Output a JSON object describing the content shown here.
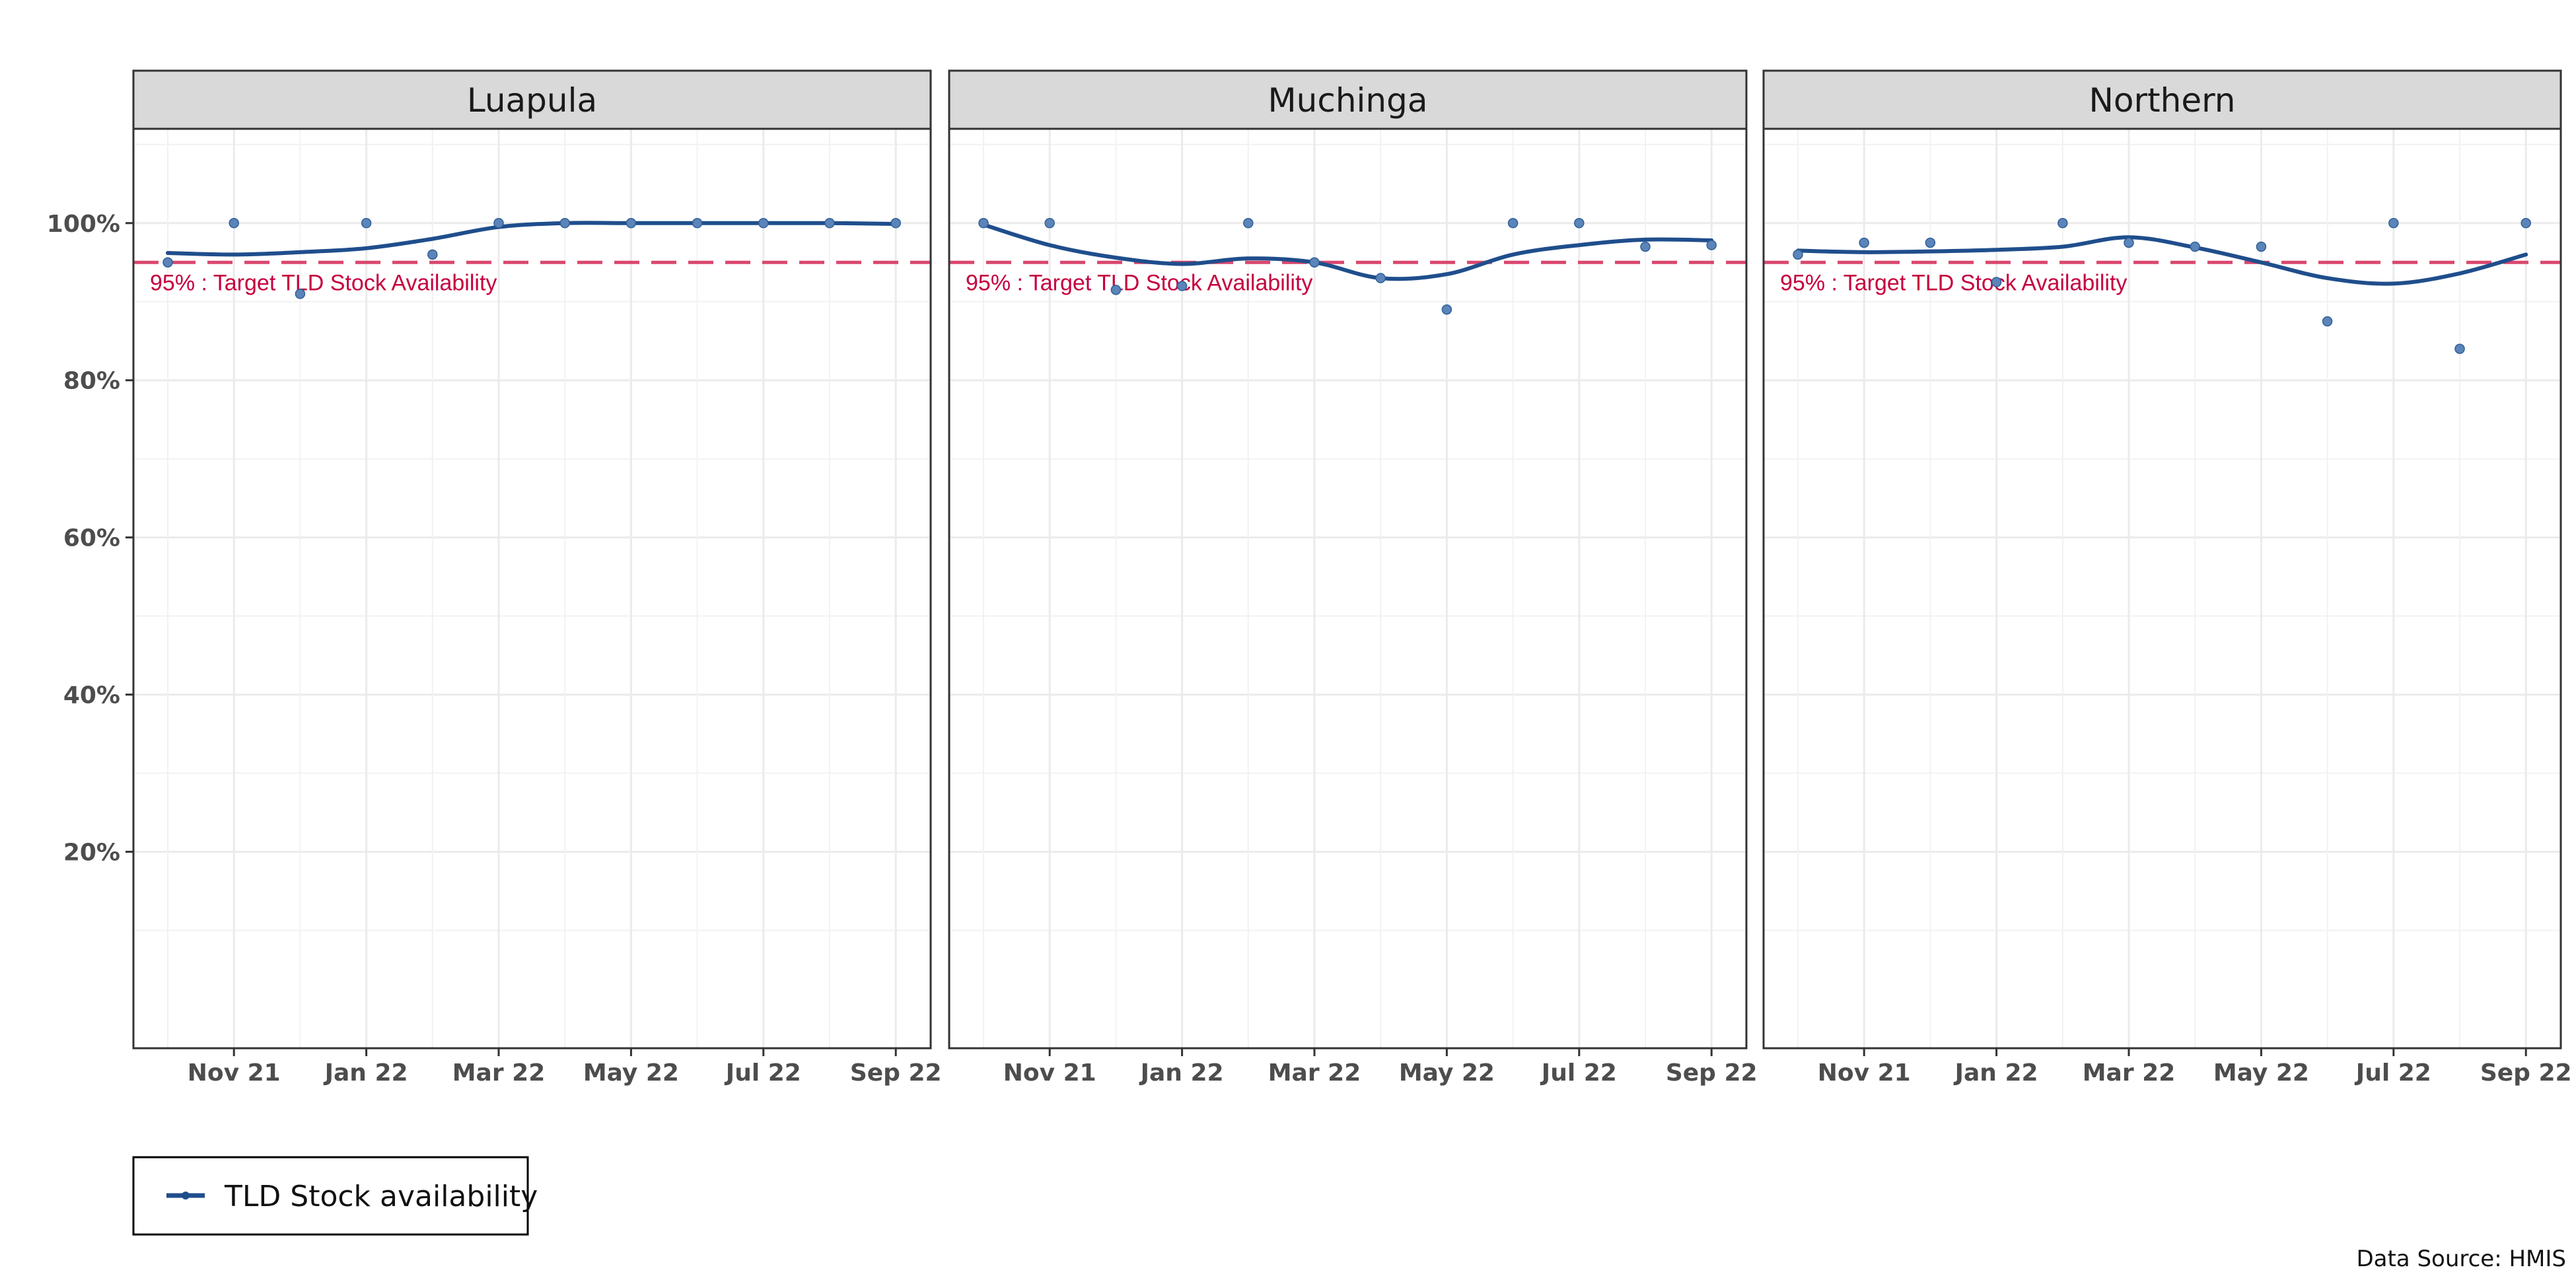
{
  "chart_data": {
    "type": "line",
    "facets": [
      "Luapula",
      "Muchinga",
      "Northern"
    ],
    "x": [
      "2021-10",
      "2021-11",
      "2021-12",
      "2022-01",
      "2022-02",
      "2022-03",
      "2022-04",
      "2022-05",
      "2022-06",
      "2022-07",
      "2022-08",
      "2022-09"
    ],
    "x_tick_labels": [
      "Nov 21",
      "Jan 22",
      "Mar 22",
      "May 22",
      "Jul 22",
      "Sep 22"
    ],
    "x_tick_values": [
      "2021-11",
      "2022-01",
      "2022-03",
      "2022-05",
      "2022-07",
      "2022-09"
    ],
    "y_tick_labels": [
      "20%",
      "40%",
      "60%",
      "80%",
      "100%"
    ],
    "y_tick_values": [
      20,
      40,
      60,
      80,
      100
    ],
    "ylim": [
      -5,
      112
    ],
    "series": [
      {
        "name": "TLD Stock availability",
        "facet": "Luapula",
        "points": [
          95,
          100,
          91,
          100,
          96,
          100,
          100,
          100,
          100,
          100,
          100,
          100
        ],
        "trend": [
          96.2,
          96.0,
          96.3,
          96.8,
          98.0,
          99.5,
          100,
          100,
          100,
          100,
          100,
          99.9
        ]
      },
      {
        "name": "TLD Stock availability",
        "facet": "Muchinga",
        "points": [
          100,
          100,
          91.5,
          92,
          100,
          95,
          93,
          89,
          100,
          100,
          97,
          97.2
        ],
        "trend": [
          99.8,
          97.2,
          95.6,
          94.8,
          95.5,
          95.0,
          93.0,
          93.5,
          96.0,
          97.2,
          97.9,
          97.8
        ]
      },
      {
        "name": "TLD Stock availability",
        "facet": "Northern",
        "points": [
          96,
          97.5,
          97.5,
          92.5,
          100,
          97.5,
          97,
          97,
          87.5,
          100,
          84,
          100
        ],
        "trend": [
          96.5,
          96.3,
          96.4,
          96.6,
          97.0,
          98.2,
          96.9,
          95.0,
          93.0,
          92.3,
          93.6,
          96.0
        ]
      }
    ],
    "reference_line": {
      "value": 95,
      "label": "95% : Target TLD Stock Availability"
    },
    "legend": {
      "label": "TLD Stock availability",
      "position": "bottom-left"
    },
    "caption": "Data Source: HMIS",
    "grid": true,
    "colors": {
      "series": "#1f4e8c",
      "points": "#5b84b8",
      "target": "#d9476e",
      "target_text": "#c5003e",
      "strip_fill": "#d9d9d9",
      "grid": "#ebebeb"
    }
  }
}
